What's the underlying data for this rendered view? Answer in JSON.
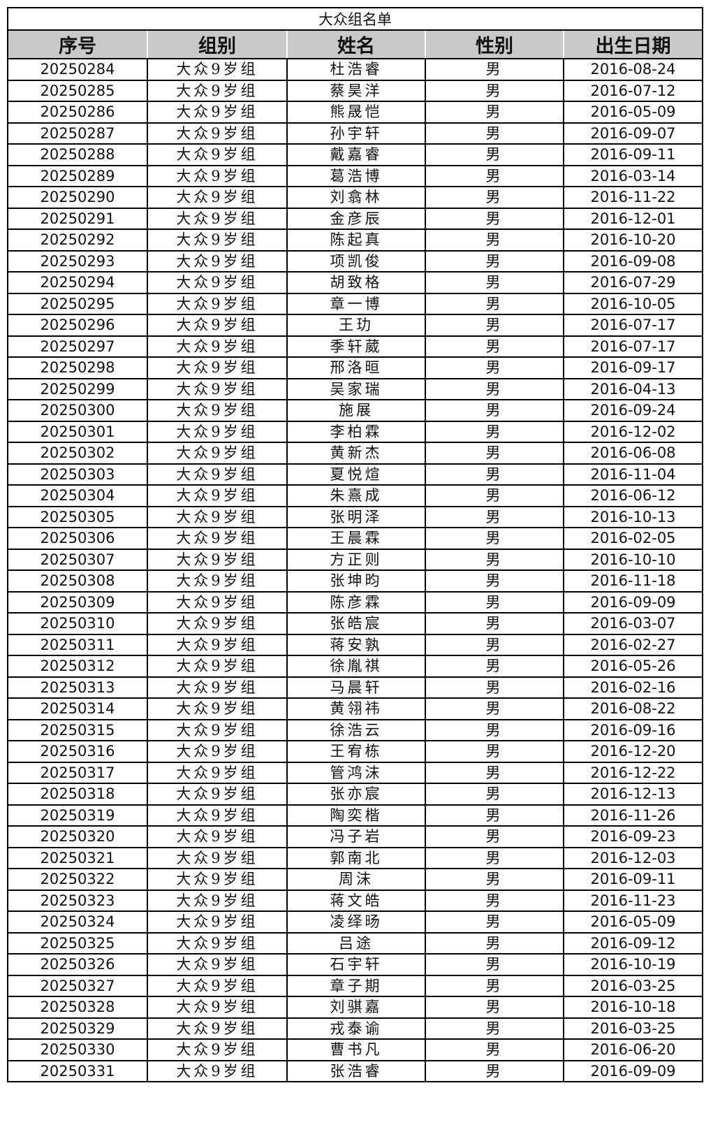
{
  "title": "大众组名单",
  "headers": [
    "序号",
    "组别",
    "姓名",
    "性别",
    "出生日期"
  ],
  "rows": [
    [
      "20250284",
      "大众9岁组",
      "杜浩睿",
      "男",
      "2016-08-24"
    ],
    [
      "20250285",
      "大众9岁组",
      "蔡昊洋",
      "男",
      "2016-07-12"
    ],
    [
      "20250286",
      "大众9岁组",
      "熊晟恺",
      "男",
      "2016-05-09"
    ],
    [
      "20250287",
      "大众9岁组",
      "孙宇轩",
      "男",
      "2016-09-07"
    ],
    [
      "20250288",
      "大众9岁组",
      "戴嘉睿",
      "男",
      "2016-09-11"
    ],
    [
      "20250289",
      "大众9岁组",
      "葛浩博",
      "男",
      "2016-03-14"
    ],
    [
      "20250290",
      "大众9岁组",
      "刘翕林",
      "男",
      "2016-11-22"
    ],
    [
      "20250291",
      "大众9岁组",
      "金彦辰",
      "男",
      "2016-12-01"
    ],
    [
      "20250292",
      "大众9岁组",
      "陈起真",
      "男",
      "2016-10-20"
    ],
    [
      "20250293",
      "大众9岁组",
      "项凯俊",
      "男",
      "2016-09-08"
    ],
    [
      "20250294",
      "大众9岁组",
      "胡致格",
      "男",
      "2016-07-29"
    ],
    [
      "20250295",
      "大众9岁组",
      "章一博",
      "男",
      "2016-10-05"
    ],
    [
      "20250296",
      "大众9岁组",
      "王玏",
      "男",
      "2016-07-17"
    ],
    [
      "20250297",
      "大众9岁组",
      "季轩葳",
      "男",
      "2016-07-17"
    ],
    [
      "20250298",
      "大众9岁组",
      "邢洛晅",
      "男",
      "2016-09-17"
    ],
    [
      "20250299",
      "大众9岁组",
      "吴家瑞",
      "男",
      "2016-04-13"
    ],
    [
      "20250300",
      "大众9岁组",
      "施展",
      "男",
      "2016-09-24"
    ],
    [
      "20250301",
      "大众9岁组",
      "李柏霖",
      "男",
      "2016-12-02"
    ],
    [
      "20250302",
      "大众9岁组",
      "黄新杰",
      "男",
      "2016-06-08"
    ],
    [
      "20250303",
      "大众9岁组",
      "夏悦煊",
      "男",
      "2016-11-04"
    ],
    [
      "20250304",
      "大众9岁组",
      "朱熹成",
      "男",
      "2016-06-12"
    ],
    [
      "20250305",
      "大众9岁组",
      "张明泽",
      "男",
      "2016-10-13"
    ],
    [
      "20250306",
      "大众9岁组",
      "王晨霖",
      "男",
      "2016-02-05"
    ],
    [
      "20250307",
      "大众9岁组",
      "方正则",
      "男",
      "2016-10-10"
    ],
    [
      "20250308",
      "大众9岁组",
      "张坤昀",
      "男",
      "2016-11-18"
    ],
    [
      "20250309",
      "大众9岁组",
      "陈彦霖",
      "男",
      "2016-09-09"
    ],
    [
      "20250310",
      "大众9岁组",
      "张皓宸",
      "男",
      "2016-03-07"
    ],
    [
      "20250311",
      "大众9岁组",
      "蒋安孰",
      "男",
      "2016-02-27"
    ],
    [
      "20250312",
      "大众9岁组",
      "徐胤祺",
      "男",
      "2016-05-26"
    ],
    [
      "20250313",
      "大众9岁组",
      "马晨轩",
      "男",
      "2016-02-16"
    ],
    [
      "20250314",
      "大众9岁组",
      "黄翎祎",
      "男",
      "2016-08-22"
    ],
    [
      "20250315",
      "大众9岁组",
      "徐浩云",
      "男",
      "2016-09-16"
    ],
    [
      "20250316",
      "大众9岁组",
      "王宥栋",
      "男",
      "2016-12-20"
    ],
    [
      "20250317",
      "大众9岁组",
      "管鸿沫",
      "男",
      "2016-12-22"
    ],
    [
      "20250318",
      "大众9岁组",
      "张亦宸",
      "男",
      "2016-12-13"
    ],
    [
      "20250319",
      "大众9岁组",
      "陶奕楷",
      "男",
      "2016-11-26"
    ],
    [
      "20250320",
      "大众9岁组",
      "冯子岩",
      "男",
      "2016-09-23"
    ],
    [
      "20250321",
      "大众9岁组",
      "郭南北",
      "男",
      "2016-12-03"
    ],
    [
      "20250322",
      "大众9岁组",
      "周沫",
      "男",
      "2016-09-11"
    ],
    [
      "20250323",
      "大众9岁组",
      "蒋文皓",
      "男",
      "2016-11-23"
    ],
    [
      "20250324",
      "大众9岁组",
      "凌绎旸",
      "男",
      "2016-05-09"
    ],
    [
      "20250325",
      "大众9岁组",
      "吕途",
      "男",
      "2016-09-12"
    ],
    [
      "20250326",
      "大众9岁组",
      "石宇轩",
      "男",
      "2016-10-19"
    ],
    [
      "20250327",
      "大众9岁组",
      "章子期",
      "男",
      "2016-03-25"
    ],
    [
      "20250328",
      "大众9岁组",
      "刘骐嘉",
      "男",
      "2016-10-18"
    ],
    [
      "20250329",
      "大众9岁组",
      "戎泰谕",
      "男",
      "2016-03-25"
    ],
    [
      "20250330",
      "大众9岁组",
      "曹书凡",
      "男",
      "2016-06-20"
    ],
    [
      "20250331",
      "大众9岁组",
      "张浩睿",
      "男",
      "2016-09-09"
    ]
  ]
}
